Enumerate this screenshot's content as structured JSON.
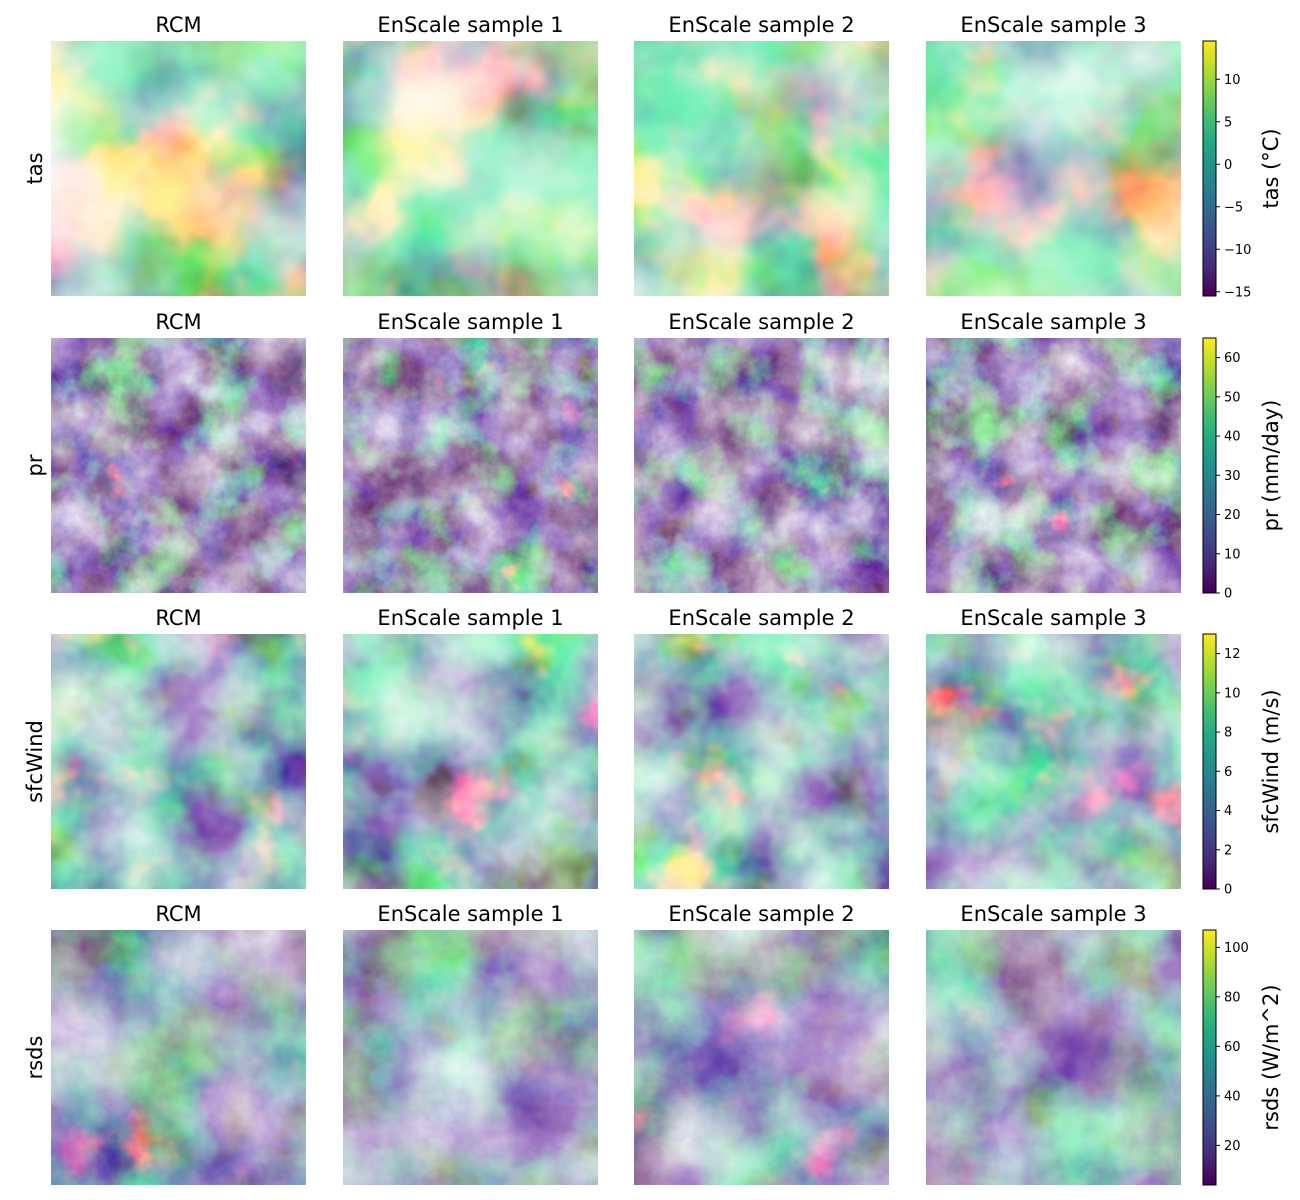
{
  "chart_data": {
    "type": "heatmap",
    "colormap": "viridis",
    "column_titles": [
      "RCM",
      "EnScale sample 1",
      "EnScale sample 2",
      "EnScale sample 3"
    ],
    "rows": [
      {
        "variable": "tas",
        "colorbar_label": "tas (°C)",
        "range": [
          -15.5,
          14.5
        ],
        "ticks": [
          -15,
          -10,
          -5,
          0,
          5,
          10
        ],
        "tick_labels": [
          "−15",
          "−10",
          "−5",
          "0",
          "5",
          "10"
        ]
      },
      {
        "variable": "pr",
        "colorbar_label": "pr (mm/day)",
        "range": [
          0,
          65
        ],
        "ticks": [
          0,
          10,
          20,
          30,
          40,
          50,
          60
        ],
        "tick_labels": [
          "0",
          "10",
          "20",
          "30",
          "40",
          "50",
          "60"
        ]
      },
      {
        "variable": "sfcWind",
        "colorbar_label": "sfcWind (m/s)",
        "range": [
          0,
          13
        ],
        "ticks": [
          0,
          2,
          4,
          6,
          8,
          10,
          12
        ],
        "tick_labels": [
          "0",
          "2",
          "4",
          "6",
          "8",
          "10",
          "12"
        ]
      },
      {
        "variable": "rsds",
        "colorbar_label": "rsds (W/m^2)",
        "range": [
          4,
          107
        ],
        "ticks": [
          20,
          40,
          60,
          80,
          100
        ],
        "tick_labels": [
          "20",
          "40",
          "60",
          "80",
          "100"
        ]
      }
    ]
  }
}
